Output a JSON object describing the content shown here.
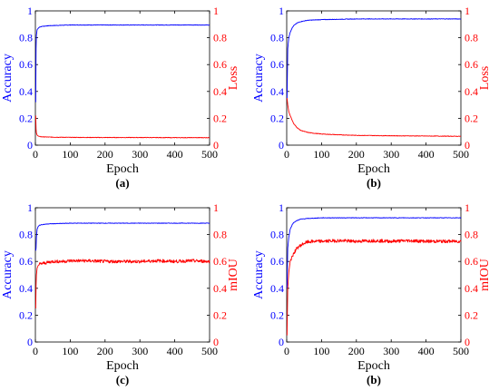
{
  "figure": {
    "background": "#ffffff",
    "left_color": "#0000ff",
    "right_color": "#ff0000",
    "frame_color": "#000000"
  },
  "chart_data": [
    {
      "id": "a",
      "type": "line",
      "caption": "(a)",
      "xlabel": "Epoch",
      "ylabel": "Accuracy",
      "y2label": "Loss",
      "xlim": [
        0,
        500
      ],
      "ylim": [
        0,
        1
      ],
      "y2lim": [
        0,
        1
      ],
      "xticks": [
        "0",
        "100",
        "200",
        "300",
        "400",
        "500"
      ],
      "yticks": [
        "0",
        "0.2",
        "0.4",
        "0.6",
        "0.8",
        "1"
      ],
      "y2ticks": [
        "0",
        "0.2",
        "0.4",
        "0.6",
        "0.8",
        "1"
      ],
      "grid": false,
      "series": [
        {
          "axis": "left",
          "color": "#0000ff",
          "x": [
            1,
            2,
            3,
            5,
            8,
            12,
            20,
            40,
            100,
            200,
            300,
            400,
            500
          ],
          "y": [
            0.32,
            0.72,
            0.82,
            0.86,
            0.87,
            0.88,
            0.885,
            0.89,
            0.895,
            0.895,
            0.895,
            0.895,
            0.895
          ]
        },
        {
          "axis": "right",
          "color": "#ff0000",
          "x": [
            1,
            2,
            3,
            5,
            8,
            12,
            20,
            40,
            100,
            200,
            300,
            400,
            500
          ],
          "y": [
            0.22,
            0.12,
            0.09,
            0.075,
            0.068,
            0.064,
            0.062,
            0.06,
            0.058,
            0.057,
            0.057,
            0.056,
            0.056
          ]
        }
      ]
    },
    {
      "id": "b",
      "type": "line",
      "caption": "(b)",
      "xlabel": "Epoch",
      "ylabel": "Accuracy",
      "y2label": "Loss",
      "xlim": [
        0,
        500
      ],
      "ylim": [
        0,
        1
      ],
      "y2lim": [
        0,
        1
      ],
      "xticks": [
        "0",
        "100",
        "200",
        "300",
        "400",
        "500"
      ],
      "yticks": [
        "0",
        "0.2",
        "0.4",
        "0.6",
        "0.8",
        "1"
      ],
      "y2ticks": [
        "0",
        "0.2",
        "0.4",
        "0.6",
        "0.8",
        "1"
      ],
      "grid": false,
      "series": [
        {
          "axis": "left",
          "color": "#0000ff",
          "x": [
            1,
            3,
            6,
            10,
            15,
            20,
            30,
            40,
            60,
            100,
            200,
            300,
            400,
            500
          ],
          "y": [
            0.35,
            0.72,
            0.8,
            0.84,
            0.87,
            0.89,
            0.91,
            0.92,
            0.93,
            0.935,
            0.94,
            0.94,
            0.94,
            0.94
          ]
        },
        {
          "axis": "right",
          "color": "#ff0000",
          "x": [
            1,
            3,
            6,
            10,
            15,
            20,
            30,
            40,
            60,
            80,
            100,
            150,
            200,
            300,
            400,
            500
          ],
          "y": [
            0.35,
            0.3,
            0.25,
            0.22,
            0.19,
            0.16,
            0.13,
            0.11,
            0.095,
            0.088,
            0.083,
            0.077,
            0.073,
            0.07,
            0.068,
            0.066
          ]
        }
      ]
    },
    {
      "id": "c",
      "type": "line",
      "caption": "(c)",
      "xlabel": "Epoch",
      "ylabel": "Accuracy",
      "y2label": "mIOU",
      "xlim": [
        0,
        500
      ],
      "ylim": [
        0,
        1
      ],
      "y2lim": [
        0,
        1
      ],
      "xticks": [
        "0",
        "100",
        "200",
        "300",
        "400",
        "500"
      ],
      "yticks": [
        "0",
        "0.2",
        "0.4",
        "0.6",
        "0.8",
        "1"
      ],
      "y2ticks": [
        "0",
        "0.2",
        "0.4",
        "0.6",
        "0.8",
        "1"
      ],
      "grid": false,
      "series": [
        {
          "axis": "left",
          "color": "#0000ff",
          "x": [
            1,
            2,
            3,
            5,
            8,
            12,
            20,
            40,
            100,
            200,
            300,
            400,
            500
          ],
          "y": [
            0.68,
            0.7,
            0.78,
            0.84,
            0.86,
            0.87,
            0.875,
            0.88,
            0.885,
            0.885,
            0.885,
            0.885,
            0.885
          ]
        },
        {
          "axis": "right",
          "color": "#ff0000",
          "x": [
            1,
            2,
            3,
            5,
            8,
            12,
            20,
            30,
            50,
            80,
            100,
            150,
            200,
            250,
            300,
            350,
            400,
            450,
            500
          ],
          "y": [
            0.25,
            0.42,
            0.5,
            0.55,
            0.57,
            0.58,
            0.585,
            0.59,
            0.6,
            0.6,
            0.605,
            0.605,
            0.6,
            0.6,
            0.6,
            0.605,
            0.6,
            0.605,
            0.6
          ]
        }
      ]
    },
    {
      "id": "d",
      "type": "line",
      "caption": "(b)",
      "xlabel": "Epoch",
      "ylabel": "Accuracy",
      "y2label": "mIOU",
      "xlim": [
        0,
        500
      ],
      "ylim": [
        0,
        1
      ],
      "y2lim": [
        0,
        1
      ],
      "xticks": [
        "0",
        "100",
        "200",
        "300",
        "400",
        "500"
      ],
      "yticks": [
        "0",
        "0.2",
        "0.4",
        "0.6",
        "0.8",
        "1"
      ],
      "y2ticks": [
        "0",
        "0.2",
        "0.4",
        "0.6",
        "0.8",
        "1"
      ],
      "grid": false,
      "series": [
        {
          "axis": "left",
          "color": "#0000ff",
          "x": [
            1,
            3,
            6,
            10,
            15,
            20,
            30,
            40,
            60,
            100,
            200,
            300,
            400,
            500
          ],
          "y": [
            0.4,
            0.7,
            0.78,
            0.84,
            0.87,
            0.89,
            0.905,
            0.915,
            0.92,
            0.925,
            0.925,
            0.925,
            0.925,
            0.925
          ]
        },
        {
          "axis": "right",
          "color": "#ff0000",
          "x": [
            1,
            3,
            6,
            10,
            15,
            20,
            30,
            40,
            50,
            60,
            80,
            100,
            150,
            200,
            250,
            300,
            350,
            400,
            450,
            500
          ],
          "y": [
            0.05,
            0.4,
            0.52,
            0.6,
            0.63,
            0.66,
            0.7,
            0.72,
            0.735,
            0.745,
            0.75,
            0.75,
            0.755,
            0.75,
            0.755,
            0.75,
            0.755,
            0.75,
            0.75,
            0.75
          ]
        }
      ]
    }
  ]
}
